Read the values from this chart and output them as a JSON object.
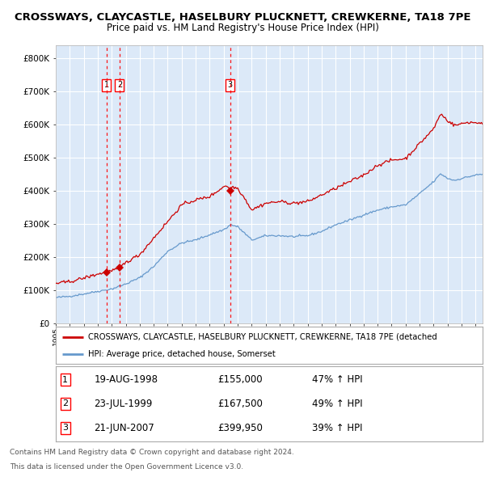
{
  "title1": "CROSSWAYS, CLAYCASTLE, HASELBURY PLUCKNETT, CREWKERNE, TA18 7PE",
  "title2": "Price paid vs. HM Land Registry's House Price Index (HPI)",
  "legend_red": "CROSSWAYS, CLAYCASTLE, HASELBURY PLUCKNETT, CREWKERNE, TA18 7PE (detached",
  "legend_blue": "HPI: Average price, detached house, Somerset",
  "footer1": "Contains HM Land Registry data © Crown copyright and database right 2024.",
  "footer2": "This data is licensed under the Open Government Licence v3.0.",
  "transactions": [
    {
      "id": 1,
      "date": "19-AUG-1998",
      "year": 1998.63,
      "price": 155000,
      "pct": "47% ↑ HPI"
    },
    {
      "id": 2,
      "date": "23-JUL-1999",
      "year": 1999.56,
      "price": 167500,
      "pct": "49% ↑ HPI"
    },
    {
      "id": 3,
      "date": "21-JUN-2007",
      "year": 2007.47,
      "price": 399950,
      "pct": "39% ↑ HPI"
    }
  ],
  "plot_bg": "#dce9f8",
  "grid_color": "#ffffff",
  "red_color": "#cc0000",
  "blue_color": "#6699cc",
  "ylim": [
    0,
    840000
  ],
  "xlim_start": 1995.0,
  "xlim_end": 2025.5,
  "hpi_anchors": [
    [
      1995.0,
      78000
    ],
    [
      1996.0,
      82000
    ],
    [
      1997.0,
      89000
    ],
    [
      1998.0,
      97000
    ],
    [
      1999.0,
      104000
    ],
    [
      2000.0,
      119000
    ],
    [
      2001.0,
      138000
    ],
    [
      2002.0,
      172000
    ],
    [
      2003.0,
      218000
    ],
    [
      2004.0,
      243000
    ],
    [
      2005.0,
      252000
    ],
    [
      2006.0,
      268000
    ],
    [
      2007.0,
      283000
    ],
    [
      2007.5,
      298000
    ],
    [
      2008.0,
      292000
    ],
    [
      2008.5,
      272000
    ],
    [
      2009.0,
      252000
    ],
    [
      2009.5,
      258000
    ],
    [
      2010.0,
      265000
    ],
    [
      2011.0,
      265000
    ],
    [
      2012.0,
      262000
    ],
    [
      2013.0,
      265000
    ],
    [
      2014.0,
      278000
    ],
    [
      2015.0,
      298000
    ],
    [
      2016.0,
      312000
    ],
    [
      2017.0,
      328000
    ],
    [
      2018.0,
      342000
    ],
    [
      2019.0,
      352000
    ],
    [
      2020.0,
      358000
    ],
    [
      2021.0,
      392000
    ],
    [
      2022.0,
      428000
    ],
    [
      2022.5,
      452000
    ],
    [
      2023.0,
      438000
    ],
    [
      2023.5,
      432000
    ],
    [
      2024.0,
      438000
    ],
    [
      2024.5,
      443000
    ],
    [
      2025.0,
      448000
    ],
    [
      2025.4,
      450000
    ]
  ],
  "red_anchors": [
    [
      1995.0,
      121000
    ],
    [
      1996.0,
      126000
    ],
    [
      1997.0,
      137000
    ],
    [
      1998.0,
      149000
    ],
    [
      1998.63,
      155000
    ],
    [
      1999.0,
      159000
    ],
    [
      1999.56,
      167500
    ],
    [
      2000.0,
      184000
    ],
    [
      2001.0,
      208000
    ],
    [
      2002.0,
      258000
    ],
    [
      2003.0,
      308000
    ],
    [
      2004.0,
      358000
    ],
    [
      2005.0,
      373000
    ],
    [
      2006.0,
      383000
    ],
    [
      2007.0,
      413000
    ],
    [
      2007.2,
      418000
    ],
    [
      2007.47,
      399950
    ],
    [
      2007.6,
      413000
    ],
    [
      2008.0,
      408000
    ],
    [
      2008.5,
      378000
    ],
    [
      2009.0,
      343000
    ],
    [
      2009.5,
      353000
    ],
    [
      2010.0,
      363000
    ],
    [
      2011.0,
      368000
    ],
    [
      2012.0,
      363000
    ],
    [
      2013.0,
      368000
    ],
    [
      2014.0,
      388000
    ],
    [
      2015.0,
      408000
    ],
    [
      2016.0,
      428000
    ],
    [
      2017.0,
      448000
    ],
    [
      2018.0,
      478000
    ],
    [
      2019.0,
      493000
    ],
    [
      2020.0,
      498000
    ],
    [
      2021.0,
      543000
    ],
    [
      2022.0,
      588000
    ],
    [
      2022.5,
      633000
    ],
    [
      2023.0,
      613000
    ],
    [
      2023.5,
      598000
    ],
    [
      2024.0,
      603000
    ],
    [
      2024.5,
      608000
    ],
    [
      2025.0,
      606000
    ],
    [
      2025.4,
      606000
    ]
  ]
}
